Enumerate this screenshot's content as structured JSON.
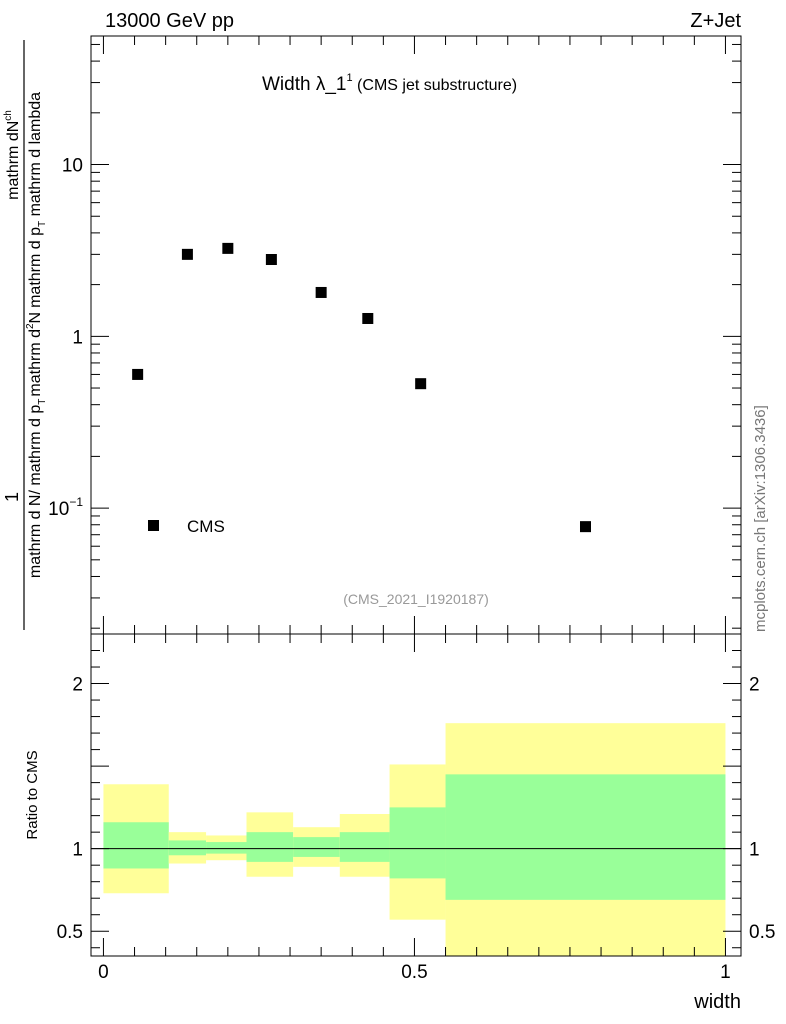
{
  "header": {
    "left": "13000 GeV pp",
    "right": "Z+Jet"
  },
  "side_label": "mcplots.cern.ch [arXiv:1306.3436]",
  "chart_data": [
    {
      "type": "scatter",
      "title_main": "Width λ_1",
      "title_sup": "1",
      "title_sub": " (CMS jet substructure)",
      "analysis_id": "(CMS_2021_I1920187)",
      "ylabel": {
        "one": "1",
        "num": "mathrm dN",
        "num_sup": "ch",
        "den_left": "mathrm d N",
        "den_right": "/ mathrm d p",
        "den_sub": "T",
        "right_num": "mathrm d",
        "right_num_sup": "2",
        "right_num_tail": "N",
        "right_den": "mathrm d p",
        "right_den_sub": "T",
        "right_den_tail": " mathrm d lambda"
      },
      "yscale": "log",
      "xlim": [
        -0.02,
        1.025
      ],
      "ylim": [
        0.0185,
        56
      ],
      "yticks": [
        {
          "value": 10,
          "label": "10"
        },
        {
          "value": 1,
          "label": "1"
        },
        {
          "value": 0.1,
          "label": "10",
          "sup": "−1"
        }
      ],
      "series": [
        {
          "name": "CMS",
          "marker": "square",
          "x": [
            0.055,
            0.135,
            0.2,
            0.27,
            0.35,
            0.425,
            0.51,
            0.775
          ],
          "y": [
            0.6,
            3.0,
            3.25,
            2.8,
            1.8,
            1.27,
            0.53,
            0.078
          ]
        }
      ],
      "legend": {
        "entries": [
          "CMS"
        ],
        "position": "lower-left"
      }
    },
    {
      "type": "area",
      "ylabel": "Ratio to CMS",
      "xlabel": "width",
      "xlim": [
        -0.02,
        1.025
      ],
      "ylim": [
        0.35,
        2.3
      ],
      "xticks": [
        {
          "value": 0,
          "label": "0"
        },
        {
          "value": 0.5,
          "label": "0.5"
        },
        {
          "value": 1,
          "label": "1"
        }
      ],
      "yticks": [
        {
          "value": 2,
          "label": "2"
        },
        {
          "value": 1,
          "label": "1"
        },
        {
          "value": 0.5,
          "label": "0.5"
        }
      ],
      "reference_line": 1,
      "bins": [
        {
          "lo": 0.0,
          "hi": 0.105,
          "inner": [
            0.88,
            1.16
          ],
          "outer": [
            0.73,
            1.39
          ]
        },
        {
          "lo": 0.105,
          "hi": 0.165,
          "inner": [
            0.96,
            1.05
          ],
          "outer": [
            0.91,
            1.1
          ]
        },
        {
          "lo": 0.165,
          "hi": 0.23,
          "inner": [
            0.97,
            1.04
          ],
          "outer": [
            0.93,
            1.08
          ]
        },
        {
          "lo": 0.23,
          "hi": 0.305,
          "inner": [
            0.92,
            1.1
          ],
          "outer": [
            0.83,
            1.22
          ]
        },
        {
          "lo": 0.305,
          "hi": 0.38,
          "inner": [
            0.95,
            1.07
          ],
          "outer": [
            0.89,
            1.13
          ]
        },
        {
          "lo": 0.38,
          "hi": 0.46,
          "inner": [
            0.92,
            1.1
          ],
          "outer": [
            0.83,
            1.21
          ]
        },
        {
          "lo": 0.46,
          "hi": 0.55,
          "inner": [
            0.82,
            1.25
          ],
          "outer": [
            0.57,
            1.51
          ]
        },
        {
          "lo": 0.55,
          "hi": 1.0,
          "inner": [
            0.69,
            1.45
          ],
          "outer": [
            0.35,
            1.76
          ]
        }
      ]
    }
  ],
  "colors": {
    "inner_band": "#99ff99",
    "outer_band": "#ffff99",
    "marker": "#000000",
    "axis": "#000000",
    "grey_text": "#999999",
    "side_text": "#777777"
  }
}
